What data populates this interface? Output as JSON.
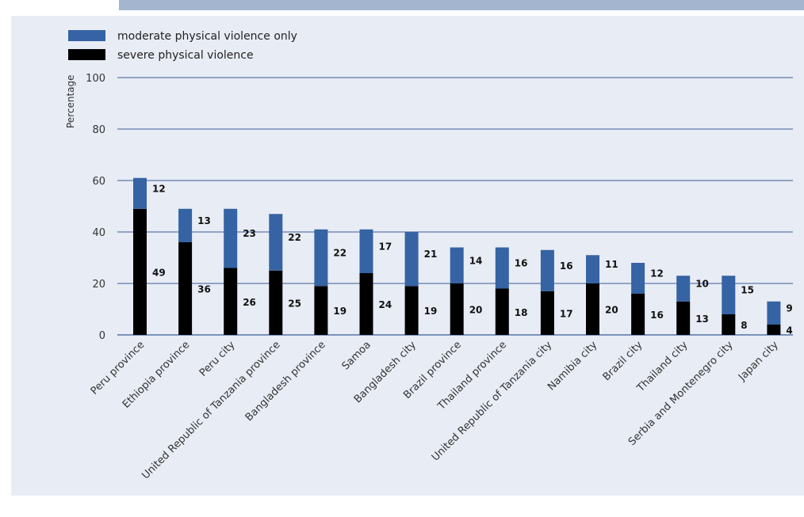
{
  "chart_data": {
    "type": "bar",
    "stacked": true,
    "ylabel": "Percentage",
    "ylim": [
      0,
      100
    ],
    "yticks": [
      0,
      20,
      40,
      60,
      80,
      100
    ],
    "grid": true,
    "legend": {
      "placement": "top-left",
      "entries": [
        "moderate physical violence only",
        "severe physical violence"
      ]
    },
    "categories": [
      "Peru province",
      "Ethiopia province",
      "Peru city",
      "United Republic of Tanzania province",
      "Bangladesh province",
      "Samoa",
      "Bangladesh city",
      "Brazil province",
      "Thailand province",
      "United Republic of Tanzania city",
      "Namibia city",
      "Brazil city",
      "Thailand city",
      "Serbia and Montenegro city",
      "Japan city"
    ],
    "series": [
      {
        "name": "severe physical violence",
        "color": "#000000",
        "values": [
          49,
          36,
          26,
          25,
          19,
          24,
          19,
          20,
          18,
          17,
          20,
          16,
          13,
          8,
          4
        ]
      },
      {
        "name": "moderate physical violence only",
        "color": "#3563a3",
        "values": [
          12,
          13,
          23,
          22,
          22,
          17,
          21,
          14,
          16,
          16,
          11,
          12,
          10,
          15,
          9
        ]
      }
    ]
  }
}
